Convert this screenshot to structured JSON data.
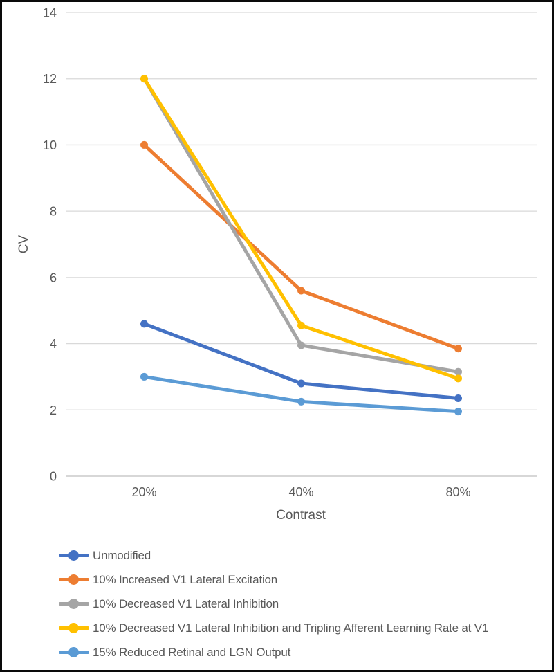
{
  "chart_data": {
    "type": "line",
    "title": "",
    "xlabel": "Contrast",
    "ylabel": "CV",
    "categories": [
      "20%",
      "40%",
      "80%"
    ],
    "y_axis": {
      "min": 0,
      "max": 14,
      "tick_step": 2,
      "tick_labels": [
        "0",
        "2",
        "4",
        "6",
        "8",
        "10",
        "12",
        "14"
      ]
    },
    "grid": true,
    "legend_position": "bottom-left",
    "series": [
      {
        "name": "Unmodified",
        "color": "#4472C4",
        "values": [
          4.6,
          2.8,
          2.35
        ]
      },
      {
        "name": "10% Increased V1 Lateral Excitation",
        "color": "#ED7D31",
        "values": [
          10,
          5.6,
          3.85
        ]
      },
      {
        "name": "10% Decreased V1 Lateral Inhibition",
        "color": "#A5A5A5",
        "values": [
          12,
          3.95,
          3.15
        ]
      },
      {
        "name": "10% Decreased V1 Lateral Inhibition and Tripling Afferent Learning Rate at V1",
        "color": "#FFC000",
        "values": [
          12,
          4.55,
          2.95
        ]
      },
      {
        "name": "15% Reduced Retinal and LGN Output",
        "color": "#5B9BD5",
        "values": [
          3,
          2.25,
          1.95
        ]
      }
    ],
    "colors": {
      "text": "#595959",
      "gridline": "#D9D9D9",
      "axis_line": "#BFBFBF",
      "frame_border": "#0a0a0a",
      "background": "#FFFFFF"
    }
  }
}
